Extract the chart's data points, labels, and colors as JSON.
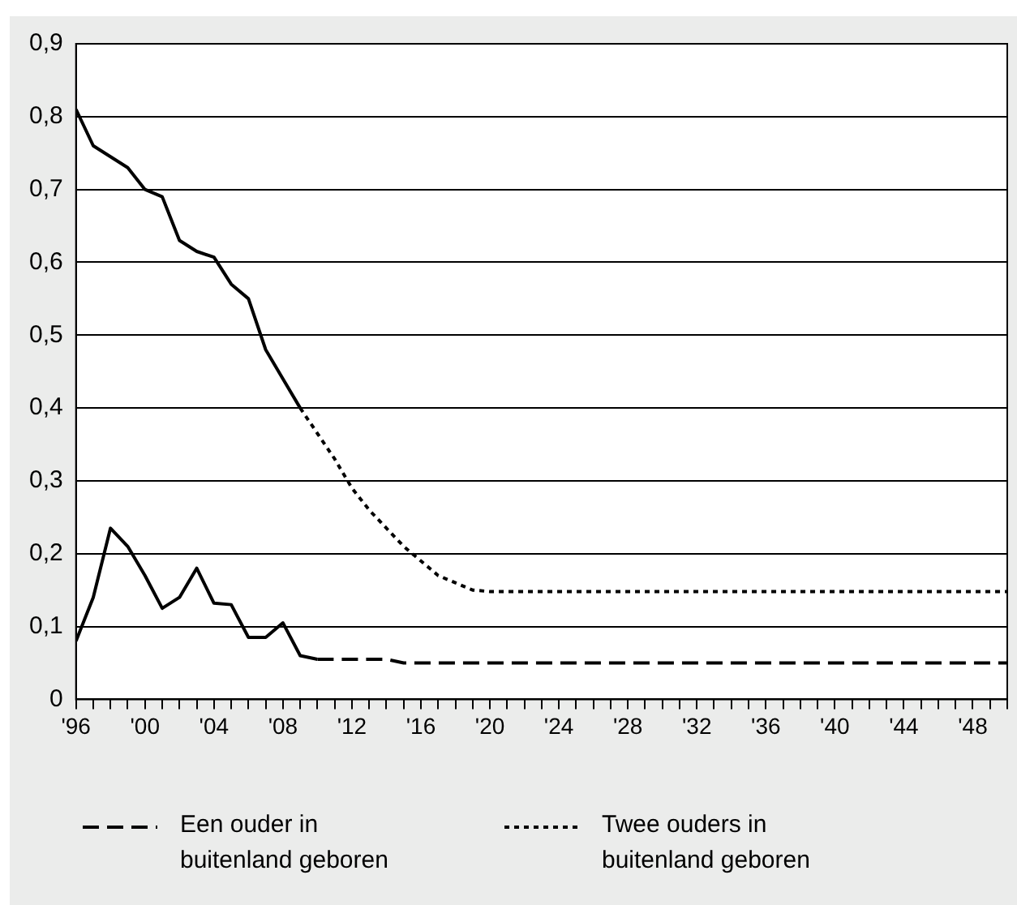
{
  "chart_data": {
    "type": "line",
    "grid": "y",
    "legend": "bottom",
    "xlim": [
      1996,
      2050
    ],
    "ylim": [
      0,
      0.9
    ],
    "xticks": [
      {
        "value": 1996,
        "label": "'96"
      },
      {
        "value": 1997,
        "label": null
      },
      {
        "value": 1998,
        "label": null
      },
      {
        "value": 1999,
        "label": null
      },
      {
        "value": 2000,
        "label": "'00"
      },
      {
        "value": 2001,
        "label": null
      },
      {
        "value": 2002,
        "label": null
      },
      {
        "value": 2003,
        "label": null
      },
      {
        "value": 2004,
        "label": "'04"
      },
      {
        "value": 2005,
        "label": null
      },
      {
        "value": 2006,
        "label": null
      },
      {
        "value": 2007,
        "label": null
      },
      {
        "value": 2008,
        "label": "'08"
      },
      {
        "value": 2009,
        "label": null
      },
      {
        "value": 2010,
        "label": null
      },
      {
        "value": 2011,
        "label": null
      },
      {
        "value": 2012,
        "label": "'12"
      },
      {
        "value": 2013,
        "label": null
      },
      {
        "value": 2014,
        "label": null
      },
      {
        "value": 2015,
        "label": null
      },
      {
        "value": 2016,
        "label": "'16"
      },
      {
        "value": 2017,
        "label": null
      },
      {
        "value": 2018,
        "label": null
      },
      {
        "value": 2019,
        "label": null
      },
      {
        "value": 2020,
        "label": "'20"
      },
      {
        "value": 2021,
        "label": null
      },
      {
        "value": 2022,
        "label": null
      },
      {
        "value": 2023,
        "label": null
      },
      {
        "value": 2024,
        "label": "'24"
      },
      {
        "value": 2025,
        "label": null
      },
      {
        "value": 2026,
        "label": null
      },
      {
        "value": 2027,
        "label": null
      },
      {
        "value": 2028,
        "label": "'28"
      },
      {
        "value": 2029,
        "label": null
      },
      {
        "value": 2030,
        "label": null
      },
      {
        "value": 2031,
        "label": null
      },
      {
        "value": 2032,
        "label": "'32"
      },
      {
        "value": 2033,
        "label": null
      },
      {
        "value": 2034,
        "label": null
      },
      {
        "value": 2035,
        "label": null
      },
      {
        "value": 2036,
        "label": "'36"
      },
      {
        "value": 2037,
        "label": null
      },
      {
        "value": 2038,
        "label": null
      },
      {
        "value": 2039,
        "label": null
      },
      {
        "value": 2040,
        "label": "'40"
      },
      {
        "value": 2041,
        "label": null
      },
      {
        "value": 2042,
        "label": null
      },
      {
        "value": 2043,
        "label": null
      },
      {
        "value": 2044,
        "label": "'44"
      },
      {
        "value": 2045,
        "label": null
      },
      {
        "value": 2046,
        "label": null
      },
      {
        "value": 2047,
        "label": null
      },
      {
        "value": 2048,
        "label": "'48"
      },
      {
        "value": 2049,
        "label": null
      },
      {
        "value": 2050,
        "label": null
      }
    ],
    "yticks": [
      {
        "value": 0,
        "label": "0"
      },
      {
        "value": 0.1,
        "label": "0,1"
      },
      {
        "value": 0.2,
        "label": "0,2"
      },
      {
        "value": 0.3,
        "label": "0,3"
      },
      {
        "value": 0.4,
        "label": "0,4"
      },
      {
        "value": 0.5,
        "label": "0,5"
      },
      {
        "value": 0.6,
        "label": "0,6"
      },
      {
        "value": 0.7,
        "label": "0,7"
      },
      {
        "value": 0.8,
        "label": "0,8"
      },
      {
        "value": 0.9,
        "label": "0,9"
      }
    ],
    "series": [
      {
        "color": "#000000",
        "line_style": "solid",
        "x": [
          1996,
          1997,
          1998,
          1999,
          2000,
          2001,
          2002,
          2003,
          2004,
          2005,
          2006,
          2007,
          2008,
          2009,
          2010
        ],
        "values": [
          0.08,
          0.14,
          0.235,
          0.21,
          0.17,
          0.125,
          0.14,
          0.18,
          0.132,
          0.13,
          0.085,
          0.085,
          0.105,
          0.06,
          0.055
        ]
      },
      {
        "name": "Een ouder in buitenland geboren",
        "color": "#000000",
        "line_style": "dashed",
        "x": [
          2010,
          2014,
          2015,
          2050
        ],
        "values": [
          0.055,
          0.055,
          0.05,
          0.05
        ]
      },
      {
        "color": "#000000",
        "line_style": "solid",
        "x": [
          1996,
          1997,
          1998,
          1999,
          2000,
          2001,
          2002,
          2003,
          2004,
          2005,
          2006,
          2007,
          2008,
          2009
        ],
        "values": [
          0.81,
          0.76,
          0.745,
          0.73,
          0.7,
          0.69,
          0.63,
          0.615,
          0.607,
          0.57,
          0.55,
          0.48,
          0.44,
          0.4
        ]
      },
      {
        "name": "Twee ouders in buitenland geboren",
        "color": "#000000",
        "line_style": "dotted",
        "x": [
          2009,
          2010,
          2011,
          2012,
          2013,
          2014,
          2015,
          2016,
          2017,
          2018,
          2019,
          2020,
          2050
        ],
        "values": [
          0.4,
          0.365,
          0.33,
          0.29,
          0.26,
          0.235,
          0.21,
          0.19,
          0.17,
          0.16,
          0.15,
          0.148,
          0.148
        ]
      }
    ]
  }
}
